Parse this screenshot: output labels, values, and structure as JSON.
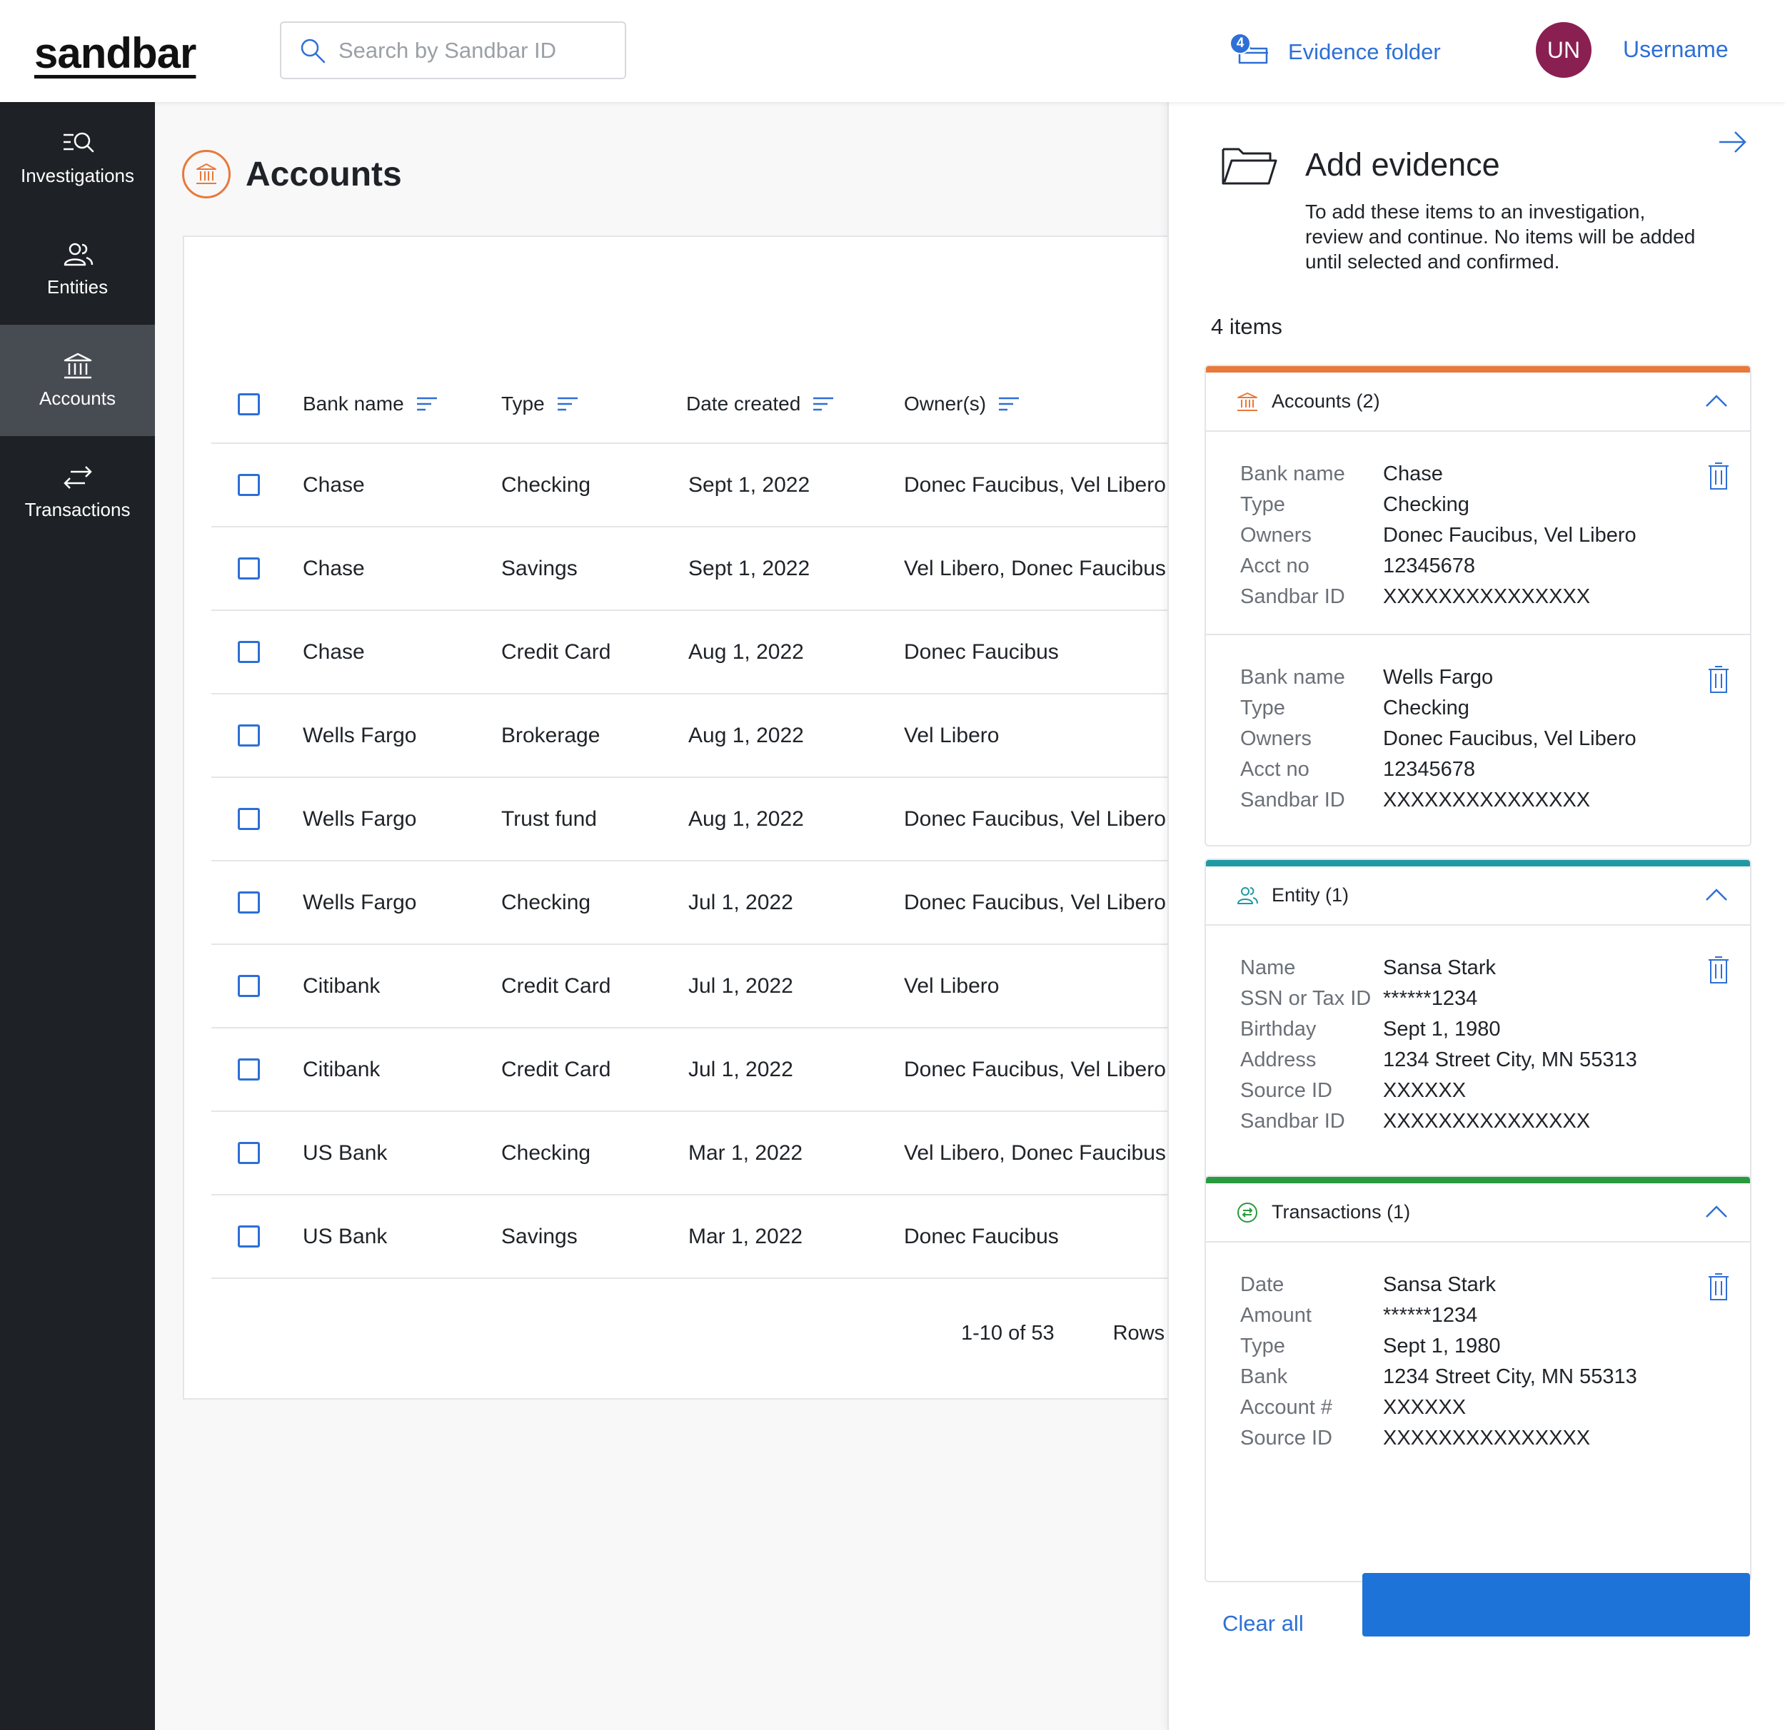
{
  "header": {
    "logo": "sandbar",
    "search_placeholder": "Search by Sandbar ID",
    "evidence_count": "4",
    "evidence_label": "Evidence folder",
    "avatar_initials": "UN",
    "username": "Username"
  },
  "sidebar": {
    "items": [
      {
        "label": "Investigations",
        "icon": "investigations-icon",
        "active": false
      },
      {
        "label": "Entities",
        "icon": "entities-icon",
        "active": false
      },
      {
        "label": "Accounts",
        "icon": "bank-icon",
        "active": true
      },
      {
        "label": "Transactions",
        "icon": "transfer-arrows-icon",
        "active": false
      }
    ]
  },
  "main": {
    "title": "Accounts",
    "table": {
      "headers": [
        "Bank name",
        "Type",
        "Date created",
        "Owner(s)"
      ],
      "rows": [
        [
          "Chase",
          "Checking",
          "Sept 1, 2022",
          "Donec Faucibus, Vel Libero"
        ],
        [
          "Chase",
          "Savings",
          "Sept 1, 2022",
          "Vel Libero, Donec Faucibus"
        ],
        [
          "Chase",
          "Credit Card",
          "Aug 1, 2022",
          "Donec Faucibus"
        ],
        [
          "Wells Fargo",
          "Brokerage",
          "Aug 1, 2022",
          "Vel Libero"
        ],
        [
          "Wells Fargo",
          "Trust fund",
          "Aug 1, 2022",
          "Donec Faucibus, Vel Libero"
        ],
        [
          "Wells Fargo",
          "Checking",
          "Jul 1, 2022",
          "Donec Faucibus, Vel Libero"
        ],
        [
          "Citibank",
          "Credit Card",
          "Jul 1, 2022",
          "Vel Libero"
        ],
        [
          "Citibank",
          "Credit Card",
          "Jul 1, 2022",
          "Donec Faucibus, Vel Libero"
        ],
        [
          "US Bank",
          "Checking",
          "Mar 1, 2022",
          "Vel Libero, Donec Faucibus"
        ],
        [
          "US Bank",
          "Savings",
          "Mar 1, 2022",
          "Donec Faucibus"
        ]
      ]
    },
    "pagination": {
      "range": "1-10 of 53",
      "rows_label": "Rows"
    }
  },
  "panel": {
    "title": "Add evidence",
    "description": "To add these items to an investigation, review and continue.  No items will be added until selected and confirmed.",
    "item_count": "4 items",
    "groups": [
      {
        "title": "Accounts (2)",
        "color": "#e8793a",
        "records": [
          [
            [
              "Bank name",
              "Chase"
            ],
            [
              "Type",
              "Checking"
            ],
            [
              "Owners",
              "Donec Faucibus, Vel Libero"
            ],
            [
              "Acct no",
              "12345678"
            ],
            [
              "Sandbar ID",
              "XXXXXXXXXXXXXXX"
            ]
          ],
          [
            [
              "Bank name",
              "Wells Fargo"
            ],
            [
              "Type",
              "Checking"
            ],
            [
              "Owners",
              "Donec Faucibus, Vel Libero"
            ],
            [
              "Acct no",
              "12345678"
            ],
            [
              "Sandbar ID",
              "XXXXXXXXXXXXXXX"
            ]
          ]
        ]
      },
      {
        "title": "Entity (1)",
        "color": "#1f9aa3",
        "records": [
          [
            [
              "Name",
              "Sansa Stark"
            ],
            [
              "SSN or Tax ID",
              "******1234"
            ],
            [
              "Birthday",
              "Sept 1, 1980"
            ],
            [
              "Address",
              "1234 Street City, MN 55313"
            ],
            [
              "Source ID",
              "XXXXXX"
            ],
            [
              "Sandbar ID",
              "XXXXXXXXXXXXXXX"
            ]
          ]
        ]
      },
      {
        "title": "Transactions (1)",
        "color": "#2a9a3e",
        "records": [
          [
            [
              "Date",
              "Sansa Stark"
            ],
            [
              "Amount",
              "******1234"
            ],
            [
              "Type",
              "Sept 1, 1980"
            ],
            [
              "Bank",
              "1234 Street City, MN 55313"
            ],
            [
              "Account #",
              "XXXXXX"
            ],
            [
              "Source ID",
              "XXXXXXXXXXXXXXX"
            ]
          ]
        ]
      }
    ],
    "clear_all": "Clear all",
    "primary_button_label": ""
  },
  "colors": {
    "accent": "#2d6fd6",
    "sidebar_bg": "#1e2125",
    "sidebar_active": "#474b52",
    "accounts": "#e8793a",
    "entity": "#1f9aa3",
    "transactions": "#2a9a3e",
    "avatar": "#8a1f52",
    "button": "#1d73d8"
  }
}
